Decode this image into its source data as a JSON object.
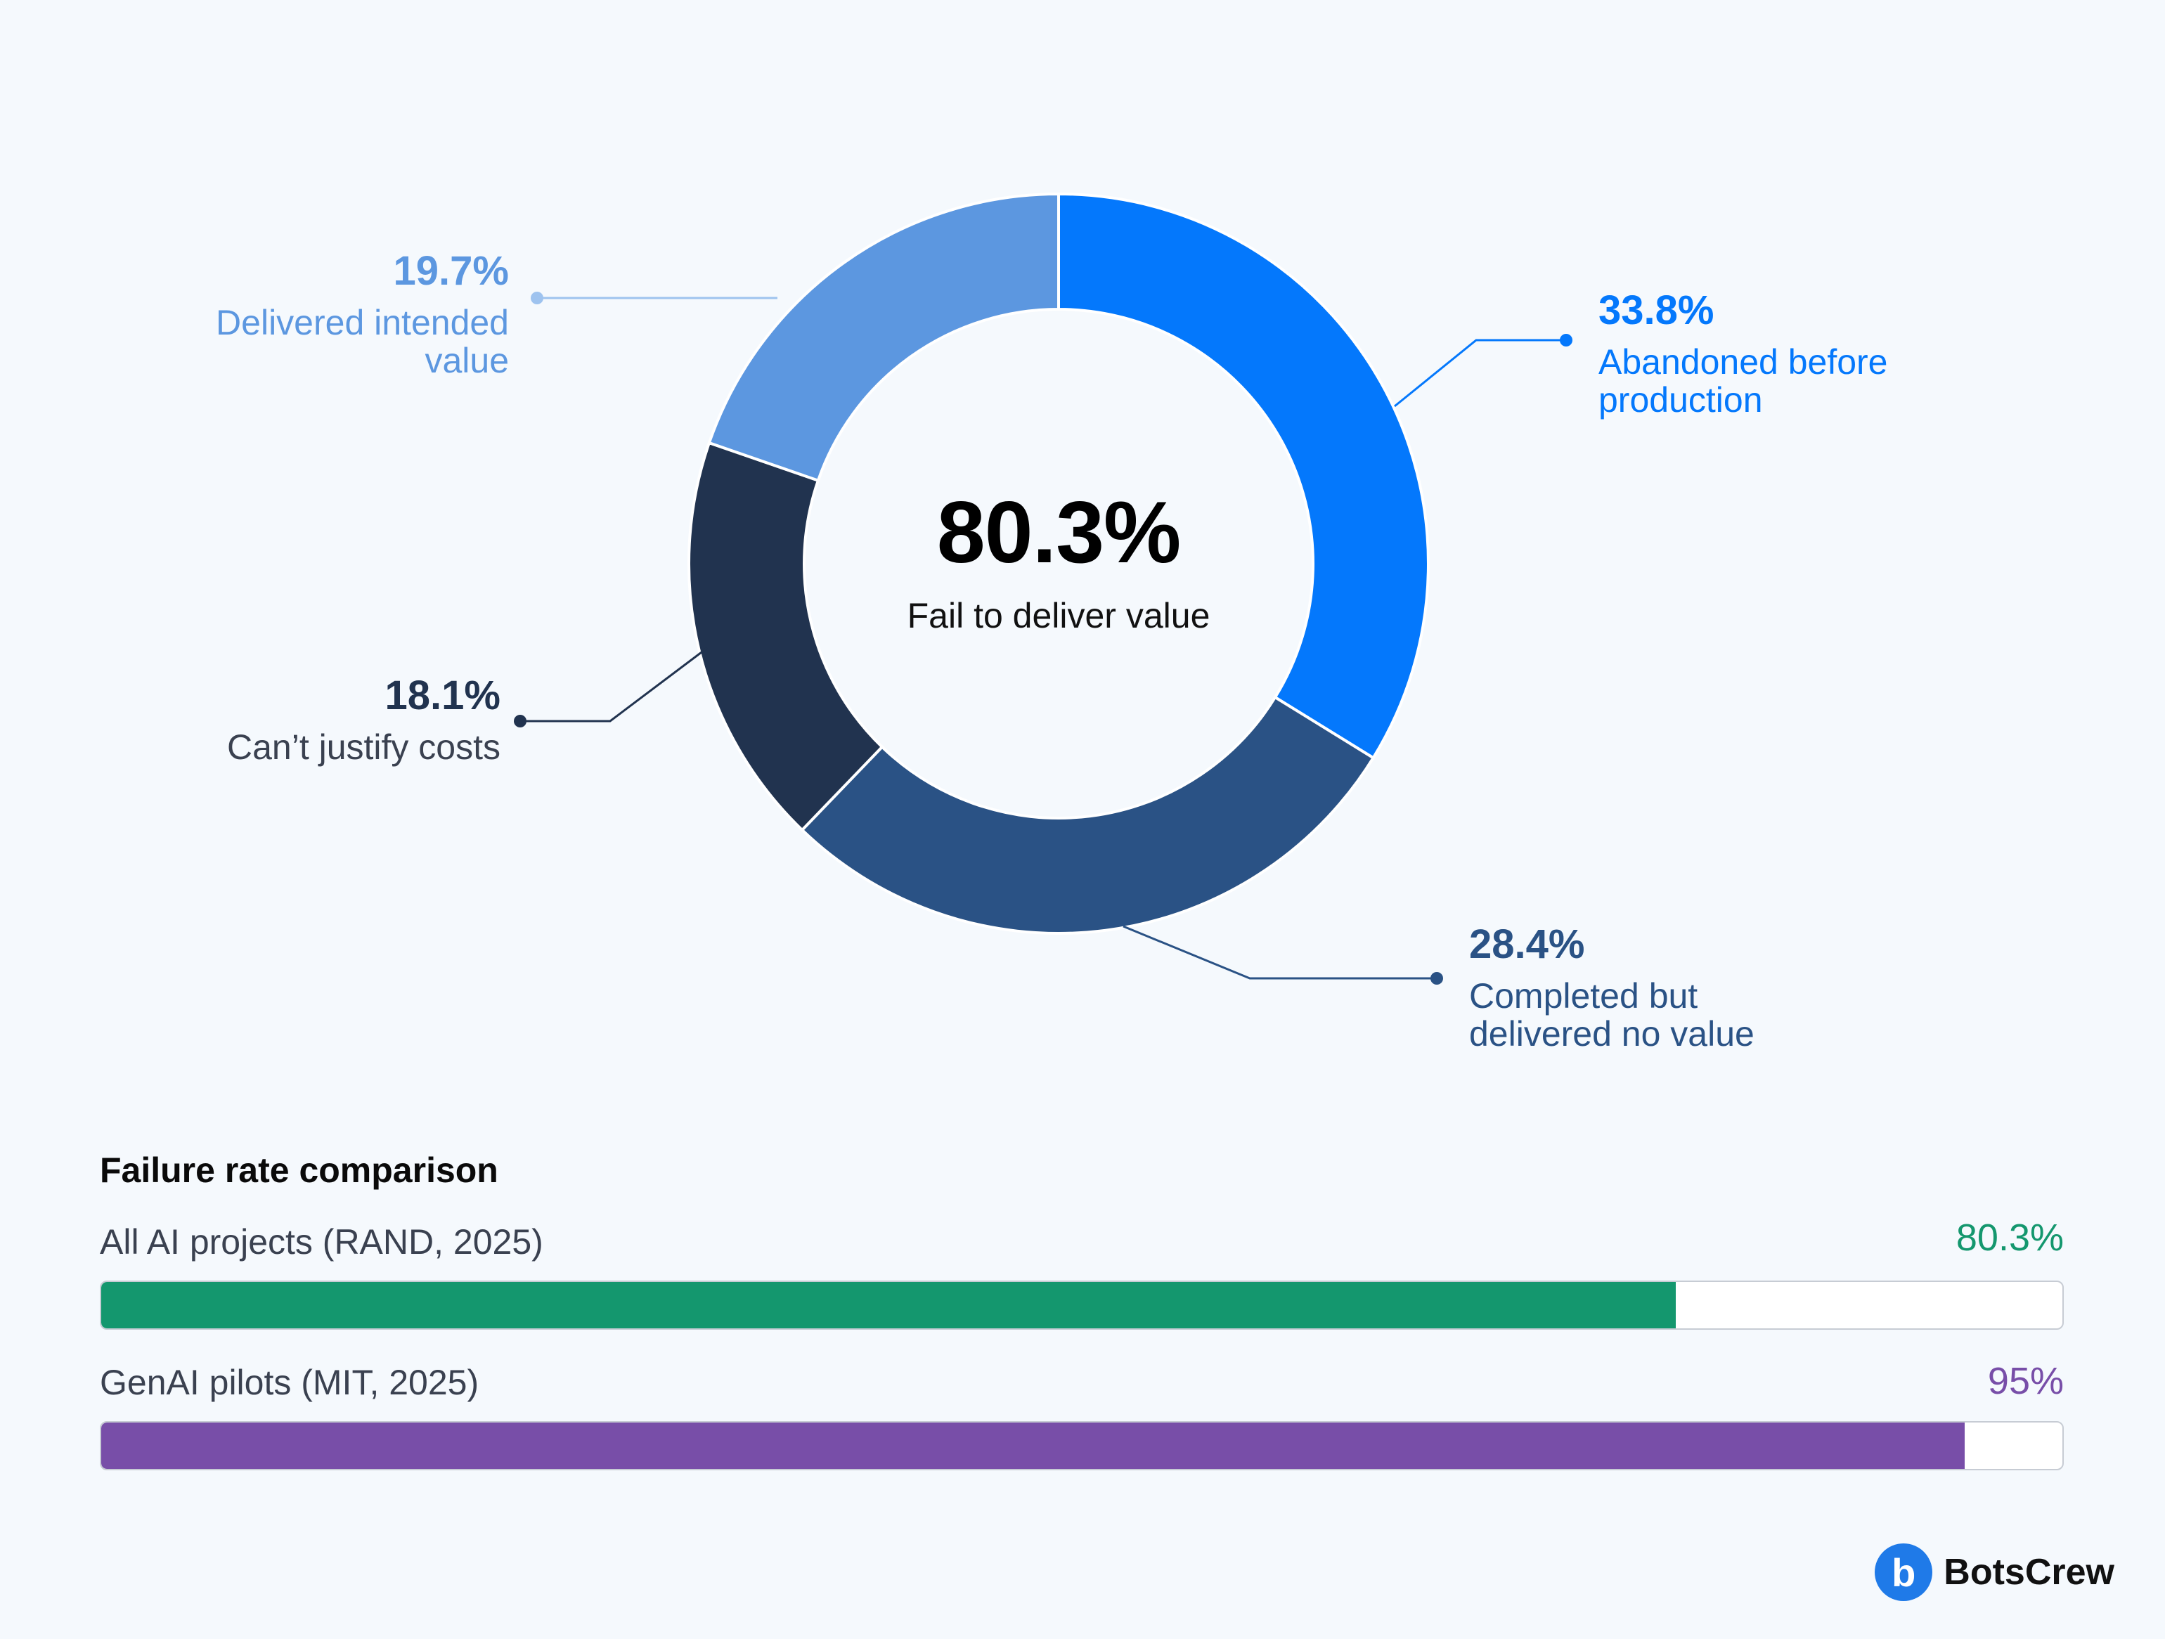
{
  "chart_data": [
    {
      "type": "pie",
      "variant": "donut",
      "center": {
        "value": "80.3%",
        "label": "Fail to deliver value"
      },
      "slices": [
        {
          "label": "Abandoned before production",
          "value": 33.8,
          "value_label": "33.8%",
          "color": "#0478fc"
        },
        {
          "label": "Completed but delivered no value",
          "value": 28.4,
          "value_label": "28.4%",
          "color": "#2a5285"
        },
        {
          "label": "Can’t justify costs",
          "value": 18.1,
          "value_label": "18.1%",
          "color": "#21334f"
        },
        {
          "label": "Delivered intended value",
          "value": 19.7,
          "value_label": "19.7%",
          "color": "#5c97e0"
        }
      ]
    },
    {
      "type": "bar",
      "orientation": "horizontal",
      "title": "Failure rate comparison",
      "xlim": [
        0,
        100
      ],
      "categories": [
        "All AI projects (RAND, 2025)",
        "GenAI pilots (MIT, 2025)"
      ],
      "values": [
        80.3,
        95
      ],
      "value_labels": [
        "80.3%",
        "95%"
      ],
      "colors": [
        "#14976e",
        "#784ea8"
      ]
    }
  ],
  "labels": {
    "abandoned": {
      "pct": "33.8%",
      "line1": "Abandoned before",
      "line2": "production"
    },
    "completed": {
      "pct": "28.4%",
      "line1": "Completed but",
      "line2": "delivered no value"
    },
    "cant_justify": {
      "pct": "18.1%",
      "line1": "Can’t justify costs"
    },
    "delivered": {
      "pct": "19.7%",
      "line1": "Delivered intended",
      "line2": "value"
    }
  },
  "brand": {
    "name": "BotsCrew",
    "mark": "b"
  }
}
